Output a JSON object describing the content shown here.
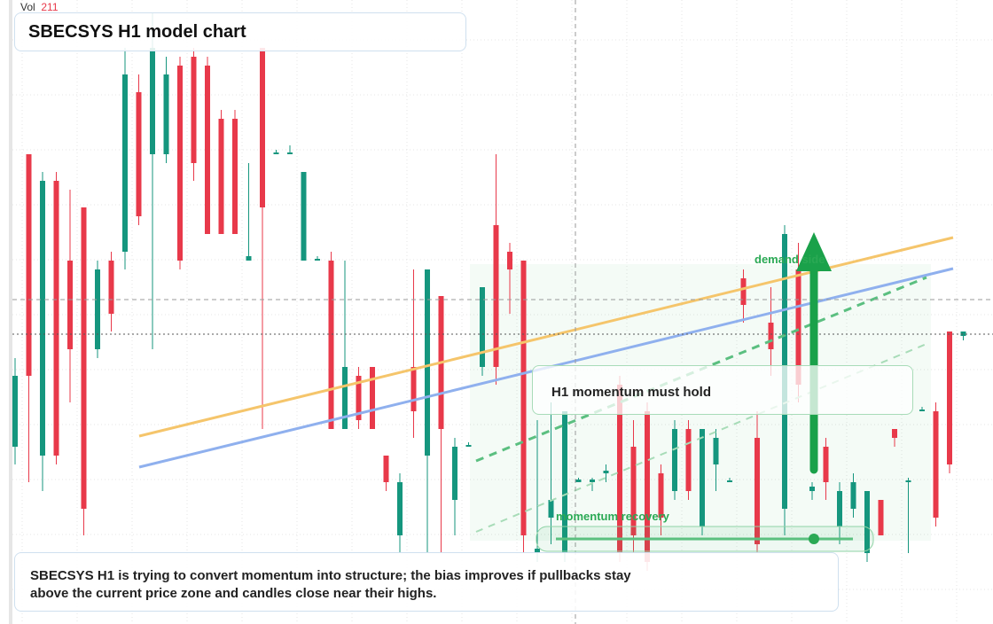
{
  "chart_data": {
    "type": "candlestick",
    "title": "SBECSYS H1 model chart",
    "volume_label": "Vol",
    "volume_value": 211,
    "annotations": [
      "demand side",
      "H1 momentum must hold",
      "momentum recovery"
    ],
    "note": "SBECSYS H1 is trying to convert momentum into structure; the bias improves if pullbacks stay above the current price zone and candles close near their highs.",
    "ylim": [
      0,
      70
    ],
    "up_color": "#15967e",
    "down_color": "#e8394a",
    "grid": true,
    "open": [
      20,
      53,
      19,
      50,
      41,
      47,
      31,
      41,
      42,
      60,
      53,
      53,
      63,
      64,
      63,
      57,
      57,
      41,
      65,
      53,
      53,
      41,
      41,
      41,
      22,
      28,
      29,
      19,
      10,
      29,
      19,
      37,
      14,
      20,
      29,
      45,
      42,
      41,
      8,
      12,
      8,
      16,
      16,
      17,
      27,
      20,
      24,
      17,
      15,
      22,
      11,
      18,
      16,
      39,
      21,
      34,
      13,
      40,
      15,
      20,
      11,
      13,
      8,
      14,
      22,
      16,
      24,
      24,
      33,
      32.5
    ],
    "high": [
      30,
      53,
      51,
      51,
      49,
      47,
      41,
      42,
      65,
      62,
      69,
      64,
      64,
      65,
      64,
      58,
      58,
      52,
      65,
      53.5,
      54,
      51,
      41.5,
      42,
      41,
      29,
      29,
      19,
      17,
      40,
      40,
      37,
      21,
      20.5,
      38,
      53,
      43,
      41,
      23,
      25,
      24,
      16.5,
      16.5,
      18,
      28,
      23,
      25,
      18,
      23,
      23,
      22,
      22,
      16.5,
      40,
      24,
      38,
      45,
      43,
      16,
      21,
      16,
      17,
      15,
      14,
      22,
      16.5,
      24.5,
      25,
      33,
      33
    ],
    "low": [
      18,
      16,
      15,
      18,
      25,
      10,
      30,
      33,
      40,
      45,
      31,
      52,
      40,
      50,
      44,
      44,
      44,
      41,
      22,
      53,
      53,
      41,
      41,
      22,
      22,
      22,
      22,
      15,
      8,
      21,
      8,
      8,
      10,
      20,
      28,
      27,
      35,
      8,
      7,
      9,
      7,
      16,
      15,
      16,
      7,
      8,
      6,
      10,
      14,
      14,
      10,
      15,
      16,
      34,
      8,
      28,
      10,
      25,
      14,
      14,
      9,
      12,
      7,
      10,
      20,
      8,
      24,
      11,
      17,
      32
    ],
    "close": [
      28,
      28,
      50,
      19,
      31,
      13,
      40,
      35,
      62,
      46,
      65,
      62,
      41,
      52,
      44,
      44,
      44,
      41.5,
      47,
      53.2,
      53.2,
      51,
      41.2,
      22,
      29,
      23,
      22,
      16,
      16,
      24,
      40,
      22,
      20,
      20.2,
      38,
      29,
      40,
      10,
      8.5,
      14,
      24,
      16.3,
      16.3,
      17.3,
      8,
      10,
      7,
      12,
      22,
      15,
      22,
      21,
      16.2,
      36,
      9,
      31,
      44,
      27,
      15.5,
      16,
      15,
      16,
      15,
      10,
      21,
      16.2,
      24.2,
      12,
      18,
      33
    ]
  }
}
